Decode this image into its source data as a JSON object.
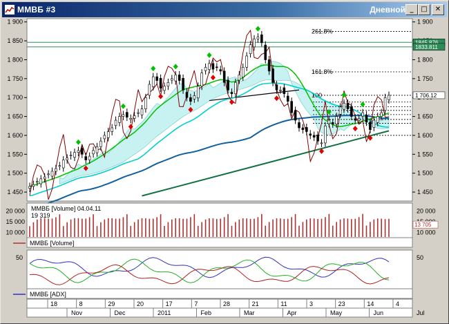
{
  "window": {
    "title": "ММВБ #3",
    "period": "Дневной",
    "buttons": {
      "minimize": "_",
      "maximize": "□",
      "close": "✕"
    }
  },
  "chart_data": [
    {
      "type": "candlestick",
      "name": "ММВБ",
      "ylim": [
        1430,
        1905
      ],
      "yticks": [
        1450,
        1500,
        1550,
        1600,
        1650,
        1700,
        1750,
        1800,
        1850,
        1900
      ],
      "ytick_labels_left": [
        "1 450",
        "1 500",
        "1 550",
        "1 600",
        "1 650",
        "1 700",
        "1 750",
        "1 800",
        "1 850",
        "1 900"
      ],
      "ytick_labels_right": [
        "1 450",
        "1 500",
        "1 550",
        "1 600",
        "1 650",
        "1 700",
        "1 750",
        "1 800",
        "1 850",
        "1 900"
      ],
      "close": [
        1465,
        1470,
        1478,
        1485,
        1490,
        1498,
        1505,
        1512,
        1520,
        1535,
        1540,
        1548,
        1555,
        1560,
        1550,
        1535,
        1545,
        1560,
        1570,
        1585,
        1600,
        1610,
        1620,
        1640,
        1650,
        1655,
        1648,
        1645,
        1652,
        1660,
        1670,
        1700,
        1735,
        1755,
        1745,
        1725,
        1730,
        1740,
        1750,
        1760,
        1745,
        1720,
        1700,
        1690,
        1705,
        1730,
        1765,
        1780,
        1790,
        1775,
        1780,
        1770,
        1740,
        1720,
        1710,
        1740,
        1760,
        1780,
        1810,
        1840,
        1855,
        1860,
        1845,
        1800,
        1770,
        1740,
        1720,
        1720,
        1710,
        1690,
        1660,
        1640,
        1620,
        1615,
        1610,
        1600,
        1595,
        1585,
        1580,
        1625,
        1640,
        1630,
        1650,
        1675,
        1685,
        1670,
        1650,
        1640,
        1645,
        1660,
        1635,
        1615,
        1640,
        1650,
        1660,
        1700,
        1706
      ],
      "high_low_pad": 10,
      "fib_levels": [
        {
          "label": "261.8%",
          "value": 1875
        },
        {
          "label": "161.8%",
          "value": 1768
        },
        {
          "label": "100",
          "value": 1706
        }
      ],
      "dotted_levels": [
        1875,
        1768,
        1706,
        1688,
        1676,
        1666,
        1655,
        1642,
        1632,
        1600
      ],
      "horizontal_teal_lines": [
        1846,
        1834
      ],
      "price_tags": [
        {
          "label": "1845.876",
          "value": 1846,
          "color": "#2e8b57"
        },
        {
          "label": "1833.811",
          "value": 1834,
          "color": "#2e8b57"
        },
        {
          "label": "1 706.12",
          "value": 1706,
          "color": "#ffffff"
        }
      ]
    },
    {
      "type": "bar",
      "name": "ММВБ [Volume]",
      "header": "ММВБ [Volume] 04.04.11",
      "current": "19 319",
      "right_value": "13 705",
      "ylim": [
        8000,
        23000
      ],
      "ytick_labels_left": [
        "20 000",
        "15 000",
        "10 000"
      ],
      "ytick_labels_right": [
        "20 000",
        "15 000",
        "10 000"
      ],
      "yticks": [
        20000,
        15000,
        10000
      ],
      "legend": "ММВБ [Volume]"
    },
    {
      "type": "line",
      "name": "ММВБ [ADX]",
      "ylim": [
        0,
        60
      ],
      "yticks": [
        50
      ],
      "ytick_labels_left": [
        "50"
      ],
      "ytick_labels_right": [
        "50"
      ],
      "legend": "ММВБ [ADX]"
    }
  ],
  "x_axis": {
    "day_labels": [
      "18",
      "8",
      "29",
      "20",
      "17",
      "7",
      "28",
      "21",
      "11",
      "3",
      "23",
      "14",
      "4"
    ],
    "month_labels": [
      "Nov",
      "Dec",
      "2011",
      "Feb",
      "Mar",
      "Apr",
      "May",
      "Jun",
      "Jul"
    ]
  },
  "colors": {
    "candle_up": "#000000",
    "ma_green": "#00c000",
    "ma_cyan": "#00d0d0",
    "ma_blue": "#1060a0",
    "ma_brown": "#800000",
    "trend_green": "#107040",
    "marker_up": "#00c000",
    "marker_down": "#e00000",
    "volume_bar": "#b03030",
    "adx_blue": "#3030c0",
    "adx_green": "#20b020",
    "adx_red": "#b02020"
  }
}
